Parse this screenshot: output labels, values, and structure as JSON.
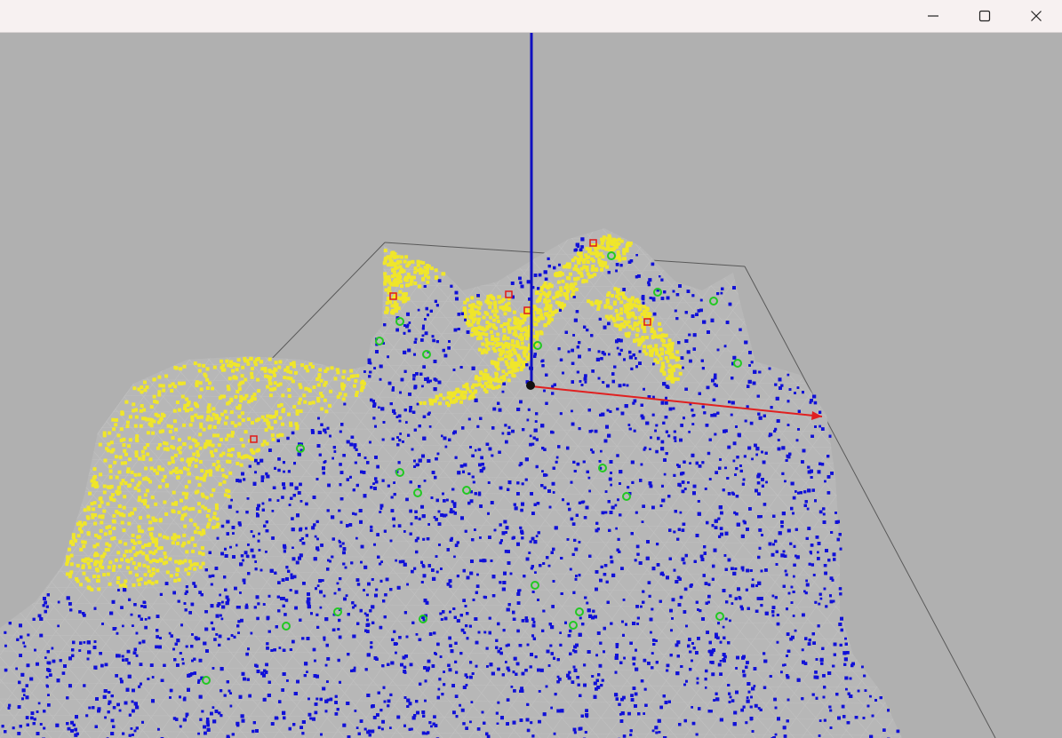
{
  "window": {
    "title": "",
    "controls": {
      "minimize": "minimize-icon",
      "maximize": "maximize-icon",
      "close": "close-icon"
    }
  },
  "scene": {
    "background_color": "#b0b0b0",
    "surface_mesh_color": "#c2c2c2",
    "bounding_box_color": "#4a4a4a",
    "point_colors": {
      "high_region": "#f0e62a",
      "low_region": "#1010d8",
      "marker_green": "#22c822",
      "marker_red": "#e01818"
    },
    "axes": {
      "x_axis_color": "#e02020",
      "z_axis_color": "#1010c0",
      "origin_color": "#111111"
    }
  }
}
